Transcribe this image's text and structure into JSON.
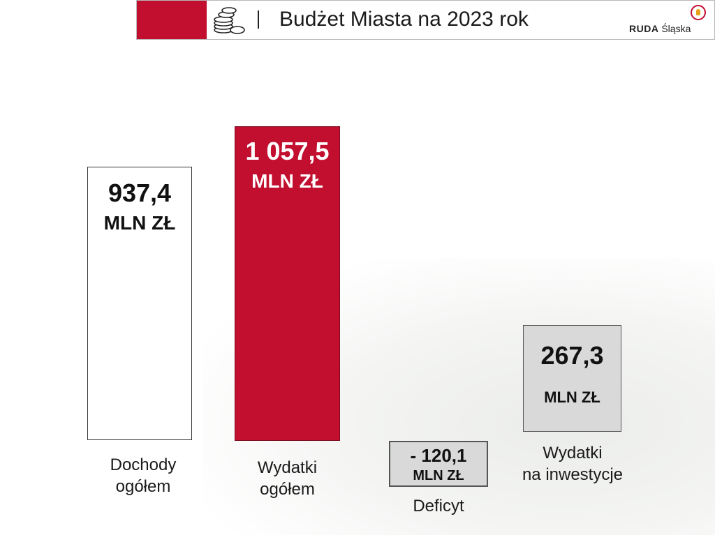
{
  "header": {
    "title": "Budżet Miasta na 2023 rok",
    "logo_bold": "RUDA",
    "logo_regular": "Śląska",
    "accent_color": "#c20e2f",
    "icon": "coins-icon"
  },
  "chart_data": {
    "type": "bar",
    "title": "Budżet Miasta na 2023 rok",
    "categories": [
      "Dochody ogółem",
      "Wydatki ogółem",
      "Deficyt",
      "Wydatki na inwestycje"
    ],
    "values": [
      937.4,
      1057.5,
      -120.1,
      267.3
    ],
    "unit": "MLN ZŁ",
    "value_labels": [
      "937,4",
      "1 057,5",
      "- 120,1",
      "267,3"
    ],
    "colors": [
      "#ffffff",
      "#c20e2f",
      "#d9d9d9",
      "#d9d9d9"
    ],
    "grid": false,
    "legend": "none"
  },
  "bars": [
    {
      "value_label": "937,4",
      "unit": "MLN ZŁ",
      "category_line1": "Dochody",
      "category_line2": "ogółem"
    },
    {
      "value_label": "1 057,5",
      "unit": "MLN ZŁ",
      "category_line1": "Wydatki",
      "category_line2": "ogółem"
    },
    {
      "value_label": "- 120,1",
      "unit": "MLN ZŁ",
      "category_line1": "Deficyt",
      "category_line2": ""
    },
    {
      "value_label": "267,3",
      "unit": "MLN ZŁ",
      "category_line1": "Wydatki",
      "category_line2": "na inwestycje"
    }
  ]
}
